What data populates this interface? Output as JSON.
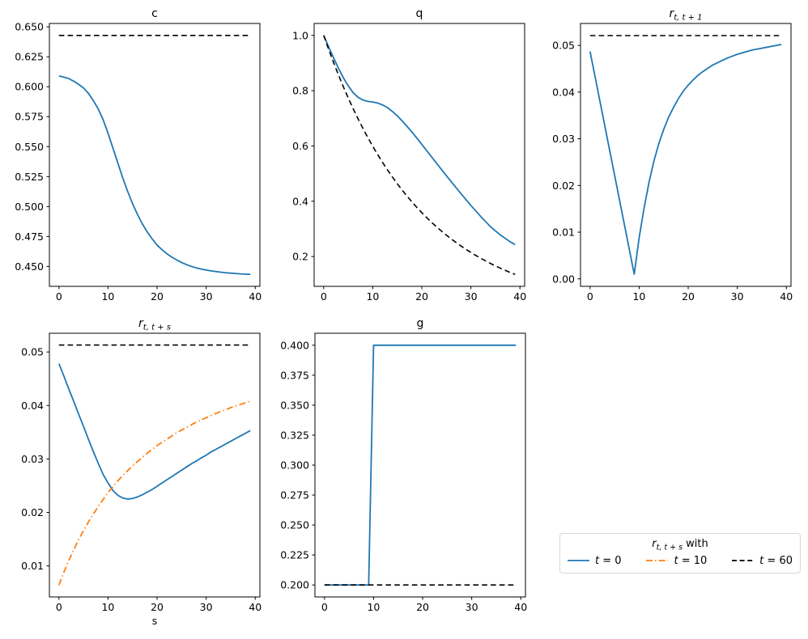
{
  "figure": {
    "background": "#ffffff"
  },
  "colors": {
    "blue": "#1f77b4",
    "orange": "#ff7f0e",
    "black": "#000000"
  },
  "chart_data": [
    {
      "id": "c",
      "type": "line",
      "title": {
        "base": "c",
        "sub": "",
        "italic": false
      },
      "xlabel": "",
      "x_start": 0,
      "x_end": 39,
      "xlim": [
        -1.95,
        40.95
      ],
      "ylim": [
        0.4334,
        0.6528
      ],
      "grid": false,
      "xticks": {
        "values": [
          0,
          10,
          20,
          30,
          40
        ],
        "labels": [
          "0",
          "10",
          "20",
          "30",
          "40"
        ]
      },
      "yticks": {
        "values": [
          0.45,
          0.475,
          0.5,
          0.525,
          0.55,
          0.575,
          0.6,
          0.625,
          0.65
        ],
        "labels": [
          "0.450",
          "0.475",
          "0.500",
          "0.525",
          "0.550",
          "0.575",
          "0.600",
          "0.625",
          "0.650"
        ]
      },
      "series": [
        {
          "name": "response",
          "color": "#1f77b4",
          "dash": "solid",
          "width": 1.8,
          "values": [
            0.609,
            0.608,
            0.6068,
            0.6046,
            0.602,
            0.599,
            0.5945,
            0.5885,
            0.5815,
            0.5725,
            0.5612,
            0.5488,
            0.5363,
            0.5239,
            0.5126,
            0.5024,
            0.4934,
            0.4855,
            0.4787,
            0.473,
            0.4678,
            0.464,
            0.4606,
            0.4578,
            0.4554,
            0.4533,
            0.4515,
            0.45,
            0.4488,
            0.4478,
            0.447,
            0.4463,
            0.4457,
            0.4452,
            0.4447,
            0.4444,
            0.4441,
            0.4438,
            0.4436,
            0.4434
          ]
        },
        {
          "name": "steady_state",
          "color": "#000000",
          "dash": "dashed",
          "width": 1.6,
          "const": 0.6428
        }
      ]
    },
    {
      "id": "q",
      "type": "line",
      "title": {
        "base": "q",
        "sub": "",
        "italic": false
      },
      "xlabel": "",
      "x_start": 0,
      "x_end": 39,
      "xlim": [
        -1.95,
        40.95
      ],
      "ylim": [
        0.0921,
        1.0432
      ],
      "grid": false,
      "xticks": {
        "values": [
          0,
          10,
          20,
          30,
          40
        ],
        "labels": [
          "0",
          "10",
          "20",
          "30",
          "40"
        ]
      },
      "yticks": {
        "values": [
          0.2,
          0.4,
          0.6,
          0.8,
          1.0
        ],
        "labels": [
          "0.2",
          "0.4",
          "0.6",
          "0.8",
          "1.0"
        ]
      },
      "series": [
        {
          "name": "response",
          "color": "#1f77b4",
          "dash": "solid",
          "width": 1.8,
          "values": [
            1.0,
            0.9586,
            0.919,
            0.8817,
            0.847,
            0.8174,
            0.7928,
            0.776,
            0.7661,
            0.7612,
            0.7591,
            0.7552,
            0.7483,
            0.7384,
            0.7248,
            0.7089,
            0.6902,
            0.6705,
            0.6498,
            0.6281,
            0.6054,
            0.5828,
            0.5601,
            0.5375,
            0.5148,
            0.4926,
            0.4704,
            0.4487,
            0.4269,
            0.4058,
            0.3846,
            0.3648,
            0.345,
            0.3264,
            0.3077,
            0.2929,
            0.278,
            0.2657,
            0.2533,
            0.2434
          ]
        },
        {
          "name": "benchmark",
          "color": "#000000",
          "dash": "dashed",
          "width": 1.6,
          "values": [
            1.0,
            0.95,
            0.9025,
            0.8574,
            0.8145,
            0.7738,
            0.7351,
            0.6983,
            0.6634,
            0.6302,
            0.5987,
            0.5688,
            0.5404,
            0.5133,
            0.4877,
            0.4633,
            0.4401,
            0.4181,
            0.3972,
            0.3774,
            0.3585,
            0.3406,
            0.3235,
            0.3074,
            0.292,
            0.2774,
            0.2635,
            0.2503,
            0.2378,
            0.2259,
            0.2146,
            0.2039,
            0.1937,
            0.184,
            0.1748,
            0.1661,
            0.1577,
            0.1499,
            0.1424,
            0.1353
          ]
        }
      ]
    },
    {
      "id": "r_t_t1",
      "type": "line",
      "title": {
        "base": "r",
        "sub": "t, t + 1",
        "italic": true
      },
      "xlabel": "",
      "x_start": 0,
      "x_end": 39,
      "xlim": [
        -1.95,
        40.95
      ],
      "ylim": [
        -0.0016,
        0.0547
      ],
      "grid": false,
      "xticks": {
        "values": [
          0,
          10,
          20,
          30,
          40
        ],
        "labels": [
          "0",
          "10",
          "20",
          "30",
          "40"
        ]
      },
      "yticks": {
        "values": [
          0.0,
          0.01,
          0.02,
          0.03,
          0.04,
          0.05
        ],
        "labels": [
          "0.00",
          "0.01",
          "0.02",
          "0.03",
          "0.04",
          "0.05"
        ]
      },
      "series": [
        {
          "name": "response",
          "color": "#1f77b4",
          "dash": "solid",
          "width": 1.8,
          "values": [
            0.0487,
            0.0434,
            0.0381,
            0.0328,
            0.0275,
            0.0222,
            0.0169,
            0.0116,
            0.0063,
            0.001,
            0.0088,
            0.0151,
            0.0206,
            0.0252,
            0.0289,
            0.032,
            0.0346,
            0.0367,
            0.0386,
            0.0402,
            0.0415,
            0.0426,
            0.0436,
            0.0444,
            0.0451,
            0.0458,
            0.0463,
            0.0468,
            0.0473,
            0.0477,
            0.0481,
            0.0484,
            0.0487,
            0.049,
            0.0492,
            0.0494,
            0.0496,
            0.0498,
            0.05,
            0.0502
          ]
        },
        {
          "name": "steady_state",
          "color": "#000000",
          "dash": "dashed",
          "width": 1.6,
          "const": 0.0521
        }
      ]
    },
    {
      "id": "r_t_ts",
      "type": "line",
      "title": {
        "base": "r",
        "sub": "t, t + s",
        "italic": true
      },
      "xlabel": "s",
      "x_start": 0,
      "x_end": 39,
      "xlim": [
        -1.95,
        40.95
      ],
      "ylim": [
        0.0042,
        0.0535
      ],
      "grid": false,
      "xticks": {
        "values": [
          0,
          10,
          20,
          30,
          40
        ],
        "labels": [
          "0",
          "10",
          "20",
          "30",
          "40"
        ]
      },
      "yticks": {
        "values": [
          0.01,
          0.02,
          0.03,
          0.04,
          0.05
        ],
        "labels": [
          "0.01",
          "0.02",
          "0.03",
          "0.04",
          "0.05"
        ]
      },
      "series": [
        {
          "name": "t0",
          "color": "#1f77b4",
          "dash": "solid",
          "width": 1.8,
          "values": [
            0.0478,
            0.0455,
            0.0431,
            0.0408,
            0.0384,
            0.0361,
            0.0337,
            0.0314,
            0.0292,
            0.0271,
            0.0255,
            0.0241,
            0.0232,
            0.0227,
            0.0225,
            0.0226,
            0.0229,
            0.0233,
            0.0238,
            0.0243,
            0.0249,
            0.0255,
            0.0261,
            0.0267,
            0.0273,
            0.0279,
            0.0285,
            0.0291,
            0.0296,
            0.0302,
            0.0307,
            0.0313,
            0.0318,
            0.0323,
            0.0328,
            0.0333,
            0.0338,
            0.0343,
            0.0348,
            0.0353
          ]
        },
        {
          "name": "t10",
          "color": "#ff7f0e",
          "dash": "dashdot",
          "width": 1.8,
          "values": [
            0.0064,
            0.0088,
            0.011,
            0.013,
            0.0149,
            0.0166,
            0.0182,
            0.0197,
            0.0211,
            0.0224,
            0.0237,
            0.0248,
            0.0259,
            0.0269,
            0.0278,
            0.0287,
            0.0295,
            0.0303,
            0.0311,
            0.0318,
            0.0325,
            0.0331,
            0.0337,
            0.0343,
            0.0349,
            0.0354,
            0.0359,
            0.0364,
            0.0369,
            0.0373,
            0.0377,
            0.0381,
            0.0385,
            0.0389,
            0.0392,
            0.0396,
            0.0399,
            0.0402,
            0.0405,
            0.0408
          ]
        },
        {
          "name": "t60",
          "color": "#000000",
          "dash": "dashed",
          "width": 1.6,
          "const": 0.0513
        }
      ]
    },
    {
      "id": "g",
      "type": "line",
      "title": {
        "base": "g",
        "sub": "",
        "italic": false
      },
      "xlabel": "",
      "x_start": 0,
      "x_end": 39,
      "xlim": [
        -1.95,
        40.95
      ],
      "ylim": [
        0.19,
        0.41
      ],
      "grid": false,
      "xticks": {
        "values": [
          0,
          10,
          20,
          30,
          40
        ],
        "labels": [
          "0",
          "10",
          "20",
          "30",
          "40"
        ]
      },
      "yticks": {
        "values": [
          0.2,
          0.225,
          0.25,
          0.275,
          0.3,
          0.325,
          0.35,
          0.375,
          0.4
        ],
        "labels": [
          "0.200",
          "0.225",
          "0.250",
          "0.275",
          "0.300",
          "0.325",
          "0.350",
          "0.375",
          "0.400"
        ]
      },
      "series": [
        {
          "name": "response",
          "color": "#1f77b4",
          "dash": "solid",
          "width": 1.8,
          "values": [
            0.2,
            0.2,
            0.2,
            0.2,
            0.2,
            0.2,
            0.2,
            0.2,
            0.2,
            0.2,
            0.4,
            0.4,
            0.4,
            0.4,
            0.4,
            0.4,
            0.4,
            0.4,
            0.4,
            0.4,
            0.4,
            0.4,
            0.4,
            0.4,
            0.4,
            0.4,
            0.4,
            0.4,
            0.4,
            0.4,
            0.4,
            0.4,
            0.4,
            0.4,
            0.4,
            0.4,
            0.4,
            0.4,
            0.4,
            0.4
          ]
        },
        {
          "name": "baseline",
          "color": "#000000",
          "dash": "dashed",
          "width": 1.6,
          "const": 0.2
        }
      ]
    }
  ],
  "legend": {
    "title": {
      "base": "r",
      "sub": "t, t + s",
      "suffix": " with"
    },
    "entries": [
      {
        "var": "t",
        "eq": " = 0",
        "color": "#1f77b4",
        "dash": "solid"
      },
      {
        "var": "t",
        "eq": " = 10",
        "color": "#ff7f0e",
        "dash": "dashdot"
      },
      {
        "var": "t",
        "eq": " = 60",
        "color": "#000000",
        "dash": "dashed"
      }
    ]
  }
}
